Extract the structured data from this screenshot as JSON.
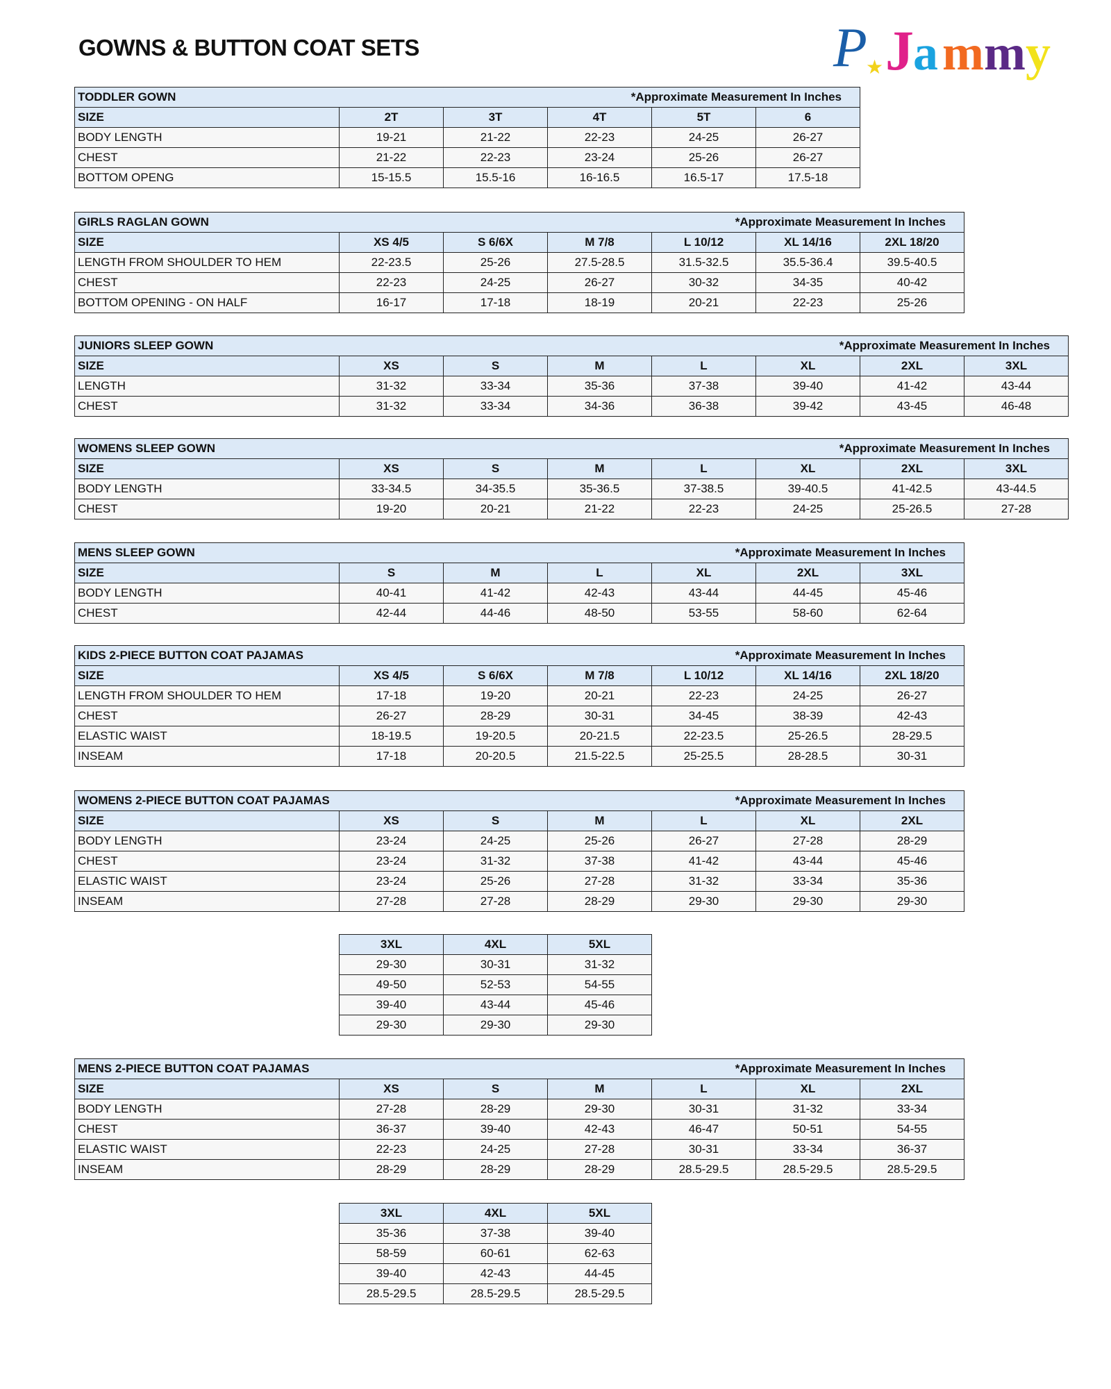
{
  "page": {
    "title": "GOWNS & BUTTON COAT SETS",
    "logo_text": "PJammy"
  },
  "colors": {
    "header_bg": "#dce9f7",
    "body_bg": "#f7f7f7",
    "border": "#222222"
  },
  "note": "*Approximate Measurement In Inches",
  "tables": [
    {
      "name": "TODDLER GOWN",
      "sizes": [
        "2T",
        "3T",
        "4T",
        "5T",
        "6"
      ],
      "rows": [
        {
          "label": "BODY LENGTH",
          "values": [
            "19-21",
            "21-22",
            "22-23",
            "24-25",
            "26-27"
          ]
        },
        {
          "label": "CHEST",
          "values": [
            "21-22",
            "22-23",
            "23-24",
            "25-26",
            "26-27"
          ]
        },
        {
          "label": "BOTTOM OPENG",
          "values": [
            "15-15.5",
            "15.5-16",
            "16-16.5",
            "16.5-17",
            "17.5-18"
          ]
        }
      ]
    },
    {
      "name": "GIRLS RAGLAN GOWN",
      "sizes": [
        "XS 4/5",
        "S 6/6X",
        "M 7/8",
        "L 10/12",
        "XL 14/16",
        "2XL 18/20"
      ],
      "rows": [
        {
          "label": "LENGTH FROM SHOULDER TO HEM",
          "values": [
            "22-23.5",
            "25-26",
            "27.5-28.5",
            "31.5-32.5",
            "35.5-36.4",
            "39.5-40.5"
          ]
        },
        {
          "label": "CHEST",
          "values": [
            "22-23",
            "24-25",
            "26-27",
            "30-32",
            "34-35",
            "40-42"
          ]
        },
        {
          "label": "BOTTOM OPENING - ON HALF",
          "values": [
            "16-17",
            "17-18",
            "18-19",
            "20-21",
            "22-23",
            "25-26"
          ]
        }
      ]
    },
    {
      "name": "JUNIORS SLEEP GOWN",
      "sizes": [
        "XS",
        "S",
        "M",
        "L",
        "XL",
        "2XL",
        "3XL"
      ],
      "rows": [
        {
          "label": "LENGTH",
          "values": [
            "31-32",
            "33-34",
            "35-36",
            "37-38",
            "39-40",
            "41-42",
            "43-44"
          ]
        },
        {
          "label": "CHEST",
          "values": [
            "31-32",
            "33-34",
            "34-36",
            "36-38",
            "39-42",
            "43-45",
            "46-48"
          ]
        }
      ]
    },
    {
      "name": "WOMENS SLEEP GOWN",
      "sizes": [
        "XS",
        "S",
        "M",
        "L",
        "XL",
        "2XL",
        "3XL"
      ],
      "rows": [
        {
          "label": "BODY LENGTH",
          "values": [
            "33-34.5",
            "34-35.5",
            "35-36.5",
            "37-38.5",
            "39-40.5",
            "41-42.5",
            "43-44.5"
          ]
        },
        {
          "label": "CHEST",
          "values": [
            "19-20",
            "20-21",
            "21-22",
            "22-23",
            "24-25",
            "25-26.5",
            "27-28"
          ]
        }
      ]
    },
    {
      "name": "MENS SLEEP GOWN",
      "sizes": [
        "S",
        "M",
        "L",
        "XL",
        "2XL",
        "3XL"
      ],
      "rows": [
        {
          "label": "BODY LENGTH",
          "values": [
            "40-41",
            "41-42",
            "42-43",
            "43-44",
            "44-45",
            "45-46"
          ]
        },
        {
          "label": "CHEST",
          "values": [
            "42-44",
            "44-46",
            "48-50",
            "53-55",
            "58-60",
            "62-64"
          ]
        }
      ]
    },
    {
      "name": "KIDS 2-PIECE BUTTON COAT PAJAMAS",
      "sizes": [
        "XS 4/5",
        "S 6/6X",
        "M 7/8",
        "L 10/12",
        "XL 14/16",
        "2XL 18/20"
      ],
      "rows": [
        {
          "label": "LENGTH FROM SHOULDER TO HEM",
          "values": [
            "17-18",
            "19-20",
            "20-21",
            "22-23",
            "24-25",
            "26-27"
          ]
        },
        {
          "label": "CHEST",
          "values": [
            "26-27",
            "28-29",
            "30-31",
            "34-45",
            "38-39",
            "42-43"
          ]
        },
        {
          "label": "ELASTIC WAIST",
          "values": [
            "18-19.5",
            "19-20.5",
            "20-21.5",
            "22-23.5",
            "25-26.5",
            "28-29.5"
          ]
        },
        {
          "label": "INSEAM",
          "values": [
            "17-18",
            "20-20.5",
            "21.5-22.5",
            "25-25.5",
            "28-28.5",
            "30-31"
          ]
        }
      ]
    },
    {
      "name": "WOMENS 2-PIECE BUTTON COAT PAJAMAS",
      "sizes": [
        "XS",
        "S",
        "M",
        "L",
        "XL",
        "2XL"
      ],
      "rows": [
        {
          "label": "BODY LENGTH",
          "values": [
            "23-24",
            "24-25",
            "25-26",
            "26-27",
            "27-28",
            "28-29"
          ]
        },
        {
          "label": "CHEST",
          "values": [
            "23-24",
            "31-32",
            "37-38",
            "41-42",
            "43-44",
            "45-46"
          ]
        },
        {
          "label": "ELASTIC WAIST",
          "values": [
            "23-24",
            "25-26",
            "27-28",
            "31-32",
            "33-34",
            "35-36"
          ]
        },
        {
          "label": "INSEAM",
          "values": [
            "27-28",
            "27-28",
            "28-29",
            "29-30",
            "29-30",
            "29-30"
          ]
        }
      ],
      "extension": {
        "sizes": [
          "3XL",
          "4XL",
          "5XL"
        ],
        "rows": [
          [
            "29-30",
            "30-31",
            "31-32"
          ],
          [
            "49-50",
            "52-53",
            "54-55"
          ],
          [
            "39-40",
            "43-44",
            "45-46"
          ],
          [
            "29-30",
            "29-30",
            "29-30"
          ]
        ]
      }
    },
    {
      "name": "MENS 2-PIECE BUTTON COAT PAJAMAS",
      "sizes": [
        "XS",
        "S",
        "M",
        "L",
        "XL",
        "2XL"
      ],
      "rows": [
        {
          "label": "BODY LENGTH",
          "values": [
            "27-28",
            "28-29",
            "29-30",
            "30-31",
            "31-32",
            "33-34"
          ]
        },
        {
          "label": "CHEST",
          "values": [
            "36-37",
            "39-40",
            "42-43",
            "46-47",
            "50-51",
            "54-55"
          ]
        },
        {
          "label": "ELASTIC WAIST",
          "values": [
            "22-23",
            "24-25",
            "27-28",
            "30-31",
            "33-34",
            "36-37"
          ]
        },
        {
          "label": "INSEAM",
          "values": [
            "28-29",
            "28-29",
            "28-29",
            "28.5-29.5",
            "28.5-29.5",
            "28.5-29.5"
          ]
        }
      ],
      "extension": {
        "sizes": [
          "3XL",
          "4XL",
          "5XL"
        ],
        "rows": [
          [
            "35-36",
            "37-38",
            "39-40"
          ],
          [
            "58-59",
            "60-61",
            "62-63"
          ],
          [
            "39-40",
            "42-43",
            "44-45"
          ],
          [
            "28.5-29.5",
            "28.5-29.5",
            "28.5-29.5"
          ]
        ]
      }
    }
  ],
  "size_label": "SIZE"
}
